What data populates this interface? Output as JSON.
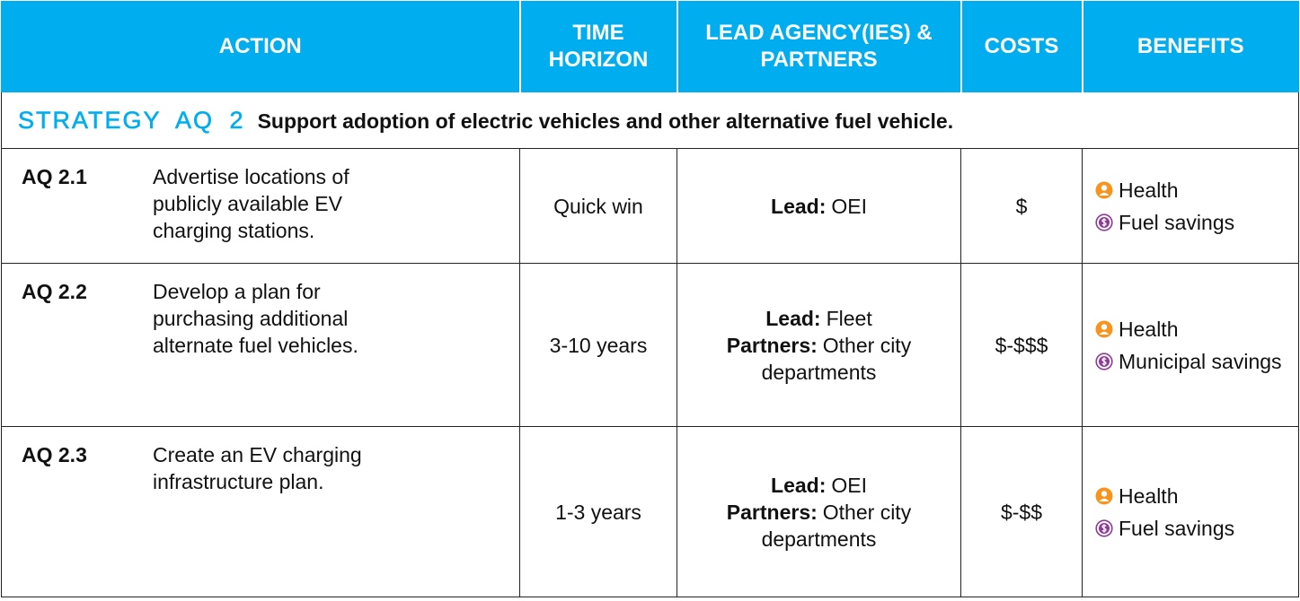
{
  "header": {
    "columns": [
      "ACTION",
      "TIME HORIZON",
      "LEAD AGENCY(IES) & PARTNERS",
      "COSTS",
      "BENEFITS"
    ]
  },
  "strategy": {
    "label": "STRATEGY AQ 2",
    "text": "Support adoption of electric vehicles and other alternative fuel vehicle."
  },
  "rows": [
    {
      "id": "AQ 2.1",
      "action": "Advertise locations of publicly available EV charging stations.",
      "time": "Quick win",
      "lead": [
        {
          "role": "Lead:",
          "name": "OEI"
        }
      ],
      "costs": "$",
      "benefits": [
        "Health",
        "Fuel savings"
      ]
    },
    {
      "id": "AQ 2.2",
      "action": "Develop a plan for purchasing additional alternate fuel vehicles.",
      "time": "3-10 years",
      "lead": [
        {
          "role": "Lead:",
          "name": "Fleet"
        },
        {
          "role": "Partners:",
          "name": "Other city departments"
        }
      ],
      "costs": "$-$$$",
      "benefits": [
        "Health",
        "Municipal savings"
      ]
    },
    {
      "id": "AQ 2.3",
      "action": "Create an EV charging infrastructure plan.",
      "time": "1-3 years",
      "lead": [
        {
          "role": "Lead:",
          "name": "OEI"
        },
        {
          "role": "Partners:",
          "name": "Other city departments"
        }
      ],
      "costs": "$-$$",
      "benefits": [
        "Health",
        "Fuel savings"
      ]
    }
  ]
}
